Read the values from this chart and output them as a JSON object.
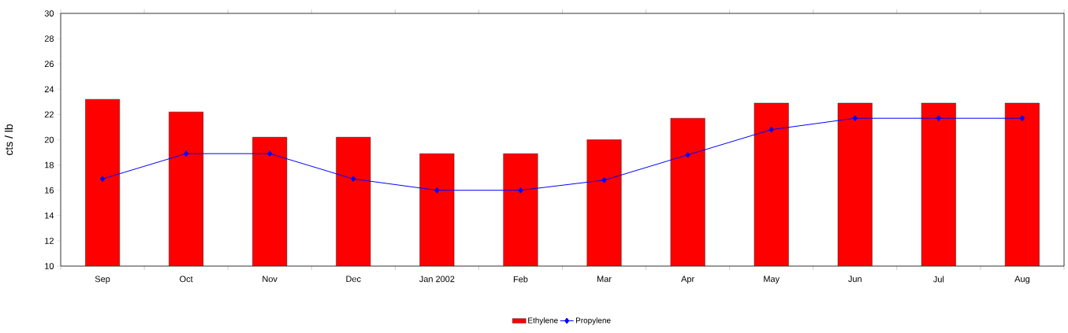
{
  "chart_data": {
    "type": "bar",
    "ylabel": "cts / lb",
    "categories": [
      "Sep",
      "Oct",
      "Nov",
      "Dec",
      "Jan 2002",
      "Feb",
      "Mar",
      "Apr",
      "May",
      "Jun",
      "Jul",
      "Aug"
    ],
    "series": [
      {
        "name": "Ethylene",
        "color": "#ff0000",
        "values": [
          23.2,
          22.2,
          20.2,
          20.2,
          18.9,
          18.9,
          20.0,
          21.7,
          22.9,
          22.9,
          22.9,
          22.9
        ]
      },
      {
        "name": "Propylene",
        "type": "line",
        "color": "#0000ff",
        "values": [
          16.9,
          18.9,
          18.9,
          16.9,
          16.0,
          16.0,
          16.8,
          18.8,
          20.8,
          21.7,
          21.7,
          21.7
        ]
      }
    ],
    "ylim": [
      10,
      30
    ],
    "yticks": [
      10,
      12,
      14,
      16,
      18,
      20,
      22,
      24,
      26,
      28,
      30
    ],
    "legend": "bottom",
    "marker": "diamond",
    "line_style": "solid"
  }
}
